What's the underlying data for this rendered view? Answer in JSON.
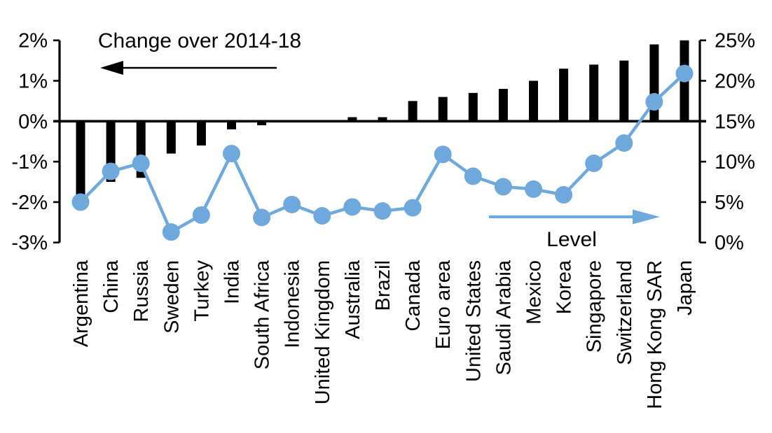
{
  "chart_data": {
    "type": "combo_bar_line",
    "title": "",
    "grid": false,
    "legend_position": "in-plot-arrow-annotations",
    "categories": [
      "Argentina",
      "China",
      "Russia",
      "Sweden",
      "Turkey",
      "India",
      "South Africa",
      "Indonesia",
      "United Kingdom",
      "Australia",
      "Brazil",
      "Canada",
      "Euro area",
      "United States",
      "Saudi Arabia",
      "Mexico",
      "Korea",
      "Singapore",
      "Switzerland",
      "Hong Kong SAR",
      "Japan"
    ],
    "series": [
      {
        "name": "Change over 2014-18",
        "type": "bar",
        "axis": "left",
        "color": "#000000",
        "values": [
          -1.9,
          -1.5,
          -1.4,
          -0.8,
          -0.6,
          -0.2,
          -0.1,
          0,
          0,
          0.1,
          0.1,
          0.5,
          0.6,
          0.7,
          0.8,
          1.0,
          1.3,
          1.4,
          1.5,
          1.9,
          2.0
        ]
      },
      {
        "name": "Level",
        "type": "line",
        "axis": "right",
        "color": "#6FA8DC",
        "values": [
          5.0,
          8.8,
          9.8,
          1.3,
          3.4,
          11.0,
          3.1,
          4.7,
          3.3,
          4.4,
          3.9,
          4.3,
          10.9,
          8.2,
          6.9,
          6.6,
          5.9,
          9.8,
          12.3,
          17.4,
          20.9
        ]
      }
    ],
    "left_axis": {
      "min": -3,
      "max": 2,
      "tick_step": 1,
      "tick_labels": [
        "2%",
        "1%",
        "0%",
        "-1%",
        "-2%",
        "-3%"
      ]
    },
    "right_axis": {
      "min": 0,
      "max": 25,
      "tick_step": 5,
      "tick_labels": [
        "25%",
        "20%",
        "15%",
        "10%",
        "5%",
        "0%"
      ]
    },
    "annotations": {
      "left_arrow_label": "Change over 2014-18",
      "left_arrow_direction": "left",
      "left_arrow_color": "#000000",
      "right_arrow_label": "Level",
      "right_arrow_direction": "right",
      "right_arrow_color": "#6FA8DC"
    }
  }
}
